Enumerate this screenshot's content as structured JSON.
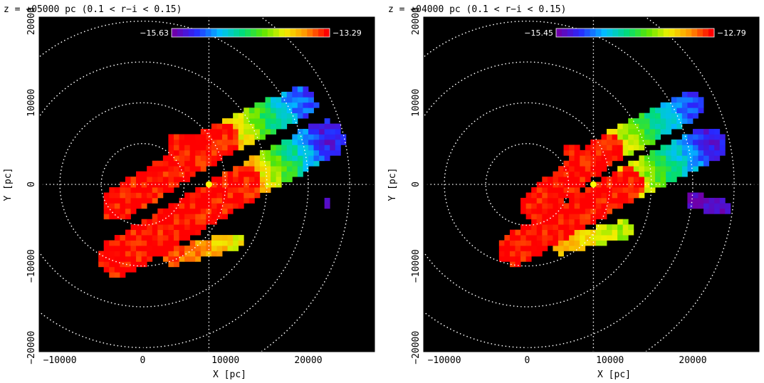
{
  "chart_data": [
    {
      "type": "heatmap",
      "title": "z = +05000 pc (0.1 < r−i < 0.15)",
      "xlabel": "X [pc]",
      "ylabel": "Y [pc]",
      "xlim": [
        -12500,
        28000
      ],
      "ylim": [
        -20500,
        20500
      ],
      "xticks": [
        -10000,
        0,
        10000,
        20000
      ],
      "xtick_labels": [
        "−10000",
        "0",
        "10000",
        "20000"
      ],
      "yticks": [
        -20000,
        -10000,
        0,
        10000,
        20000
      ],
      "ytick_labels": [
        "−20000",
        "−10000",
        "0",
        "10000",
        "20000"
      ],
      "colorbar": {
        "min": -15.63,
        "max": -13.29,
        "min_label": "−15.63",
        "max_label": "−13.29"
      },
      "sun": [
        8000,
        0
      ],
      "rings_radius": [
        5000,
        10000,
        15000,
        20000,
        25000
      ],
      "grid": true,
      "regions": [
        {
          "x": [
            -3000,
            9500
          ],
          "y": [
            -2500,
            5500
          ],
          "hw": 2000,
          "value": -13.3
        },
        {
          "x": [
            9500,
            19000
          ],
          "y": [
            5500,
            10000
          ],
          "hw": 2000,
          "value_start": -13.5,
          "value_end": -15.2
        },
        {
          "x": [
            -3000,
            12000
          ],
          "y": [
            -9000,
            0
          ],
          "hw": 2300,
          "value": -13.3
        },
        {
          "x": [
            12000,
            22000
          ],
          "y": [
            0,
            5500
          ],
          "hw": 2300,
          "value_start": -13.4,
          "value_end": -15.4
        },
        {
          "x": [
            3500,
            11000
          ],
          "y": [
            -8800,
            -7000
          ],
          "hw": 1100,
          "value_start": -13.4,
          "value_end": -13.9
        },
        {
          "x": [
            4000,
            5500
          ],
          "y": [
            5200,
            5200
          ],
          "hw": 900,
          "value": -13.3
        },
        {
          "x": [
            22500,
            22500
          ],
          "y": [
            -2300,
            -2300
          ],
          "hw": 500,
          "value": -15.6
        }
      ]
    },
    {
      "type": "heatmap",
      "title": "z = +04000 pc (0.1 < r−i < 0.15)",
      "xlabel": "X [pc]",
      "ylabel": "Y [pc]",
      "xlim": [
        -12500,
        28000
      ],
      "ylim": [
        -20500,
        20500
      ],
      "xticks": [
        -10000,
        0,
        10000,
        20000
      ],
      "xtick_labels": [
        "−10000",
        "0",
        "10000",
        "20000"
      ],
      "yticks": [
        -20000,
        -10000,
        0,
        10000,
        20000
      ],
      "ytick_labels": [
        "−20000",
        "−10000",
        "0",
        "10000",
        "20000"
      ],
      "colorbar": {
        "min": -15.45,
        "max": -12.79,
        "min_label": "−15.45",
        "max_label": "−12.79"
      },
      "sun": [
        8000,
        0
      ],
      "rings_radius": [
        5000,
        10000,
        15000,
        20000,
        25000
      ],
      "grid": true,
      "regions": [
        {
          "x": [
            1000,
            10000
          ],
          "y": [
            -2500,
            4500
          ],
          "hw": 1800,
          "value": -12.8
        },
        {
          "x": [
            10000,
            19500
          ],
          "y": [
            4500,
            9500
          ],
          "hw": 1800,
          "value_start": -13.3,
          "value_end": -15.0
        },
        {
          "x": [
            -1500,
            12000
          ],
          "y": [
            -8000,
            0
          ],
          "hw": 2000,
          "value": -12.8
        },
        {
          "x": [
            12000,
            22000
          ],
          "y": [
            0,
            5000
          ],
          "hw": 2100,
          "value_start": -13.3,
          "value_end": -15.2
        },
        {
          "x": [
            4000,
            11500
          ],
          "y": [
            -7500,
            -5500
          ],
          "hw": 1100,
          "value_start": -13.3,
          "value_end": -13.7
        },
        {
          "x": [
            5000,
            5500
          ],
          "y": [
            4000,
            4000
          ],
          "hw": 800,
          "value": -12.8
        },
        {
          "x": [
            20000,
            23500
          ],
          "y": [
            -2000,
            -2800
          ],
          "hw": 900,
          "value": -15.4
        }
      ]
    }
  ]
}
